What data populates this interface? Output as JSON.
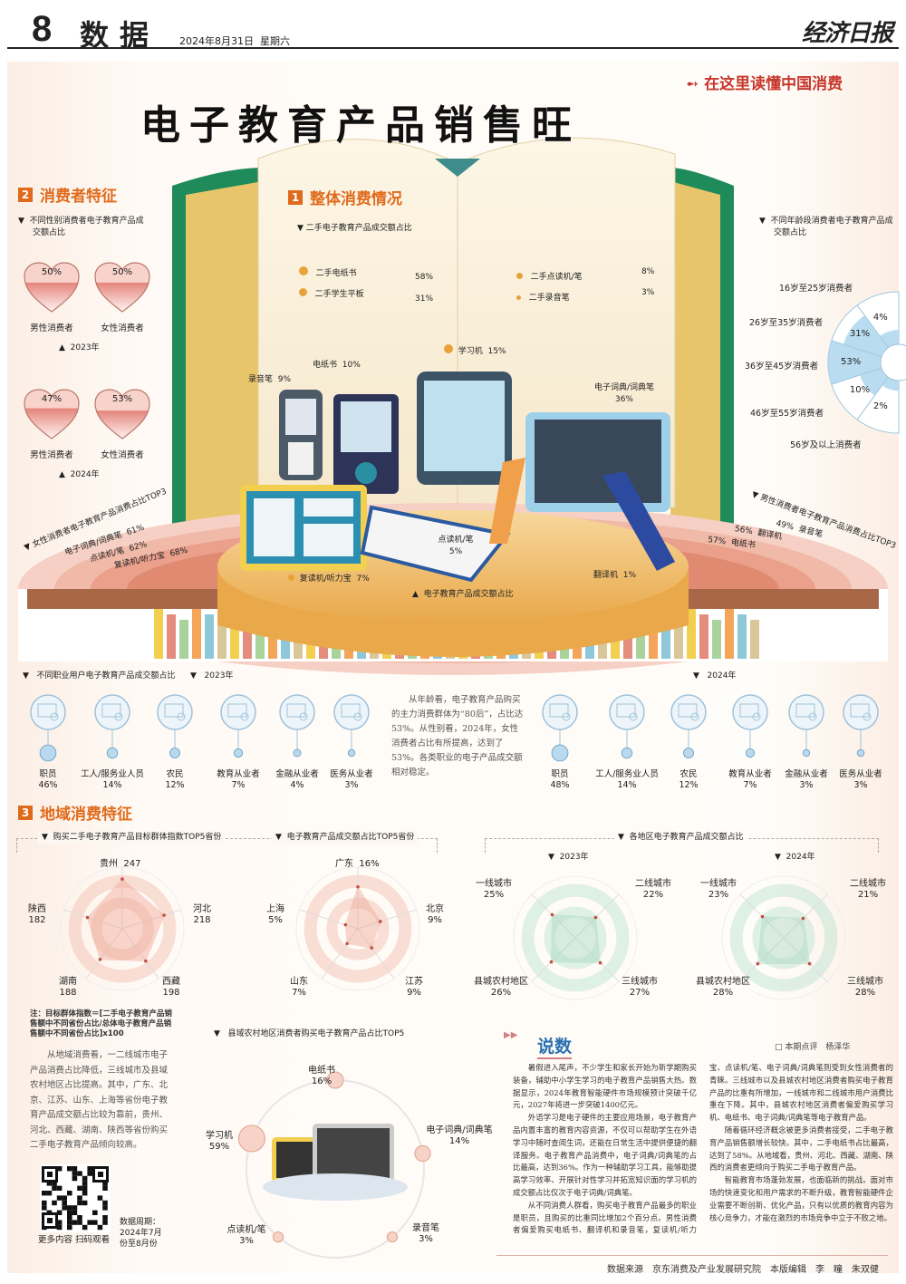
{
  "header": {
    "page_number": "8",
    "section": "数据",
    "date": "2024年8月31日",
    "weekday": "星期六",
    "newspaper_logo": "经济日报"
  },
  "tagline": "在这里读懂中国消费",
  "title": "电子教育产品销售旺",
  "colors": {
    "accent": "#e06a1b",
    "tagline": "#c8372d",
    "heart": "#e8918a",
    "age_fill": "#9fcbe6",
    "radar_province": "#f0a898",
    "radar_region": "#a9d8c2",
    "book_cover": "#1f8a5a"
  },
  "section1": {
    "number": "1",
    "heading": "整体消费情况",
    "secondhand": {
      "title": "二手电子教育产品成交额占比",
      "items": [
        {
          "label": "二手电纸书",
          "value": "58%"
        },
        {
          "label": "二手学生平板",
          "value": "31%"
        },
        {
          "label": "二手点读机/笔",
          "value": "8%"
        },
        {
          "label": "二手录音笔",
          "value": "3%"
        }
      ]
    },
    "products": {
      "title": "电子教育产品成交额占比",
      "items": [
        {
          "label": "录音笔",
          "value": "9%"
        },
        {
          "label": "电纸书",
          "value": "10%"
        },
        {
          "label": "学习机",
          "value": "15%"
        },
        {
          "label": "电子词典/词典笔",
          "value": "36%"
        },
        {
          "label": "点读机/笔",
          "value": "5%"
        },
        {
          "label": "复读机/听力宝",
          "value": "7%"
        },
        {
          "label": "翻译机",
          "value": "1%"
        }
      ]
    }
  },
  "section2": {
    "number": "2",
    "heading": "消费者特征",
    "gender": {
      "title": "不同性别消费者电子教育产品成交额占比",
      "years": [
        {
          "year": "2023年",
          "male_label": "男性消费者",
          "male": "50%",
          "female_label": "女性消费者",
          "female": "50%"
        },
        {
          "year": "2024年",
          "male_label": "男性消费者",
          "male": "47%",
          "female_label": "女性消费者",
          "female": "53%"
        }
      ]
    },
    "age": {
      "title": "不同年龄段消费者电子教育产品成交额占比",
      "items": [
        {
          "label": "16岁至25岁消费者",
          "value": "4%",
          "pct": 4
        },
        {
          "label": "26岁至35岁消费者",
          "value": "31%",
          "pct": 31
        },
        {
          "label": "36岁至45岁消费者",
          "value": "53%",
          "pct": 53
        },
        {
          "label": "46岁至55岁消费者",
          "value": "10%",
          "pct": 10
        },
        {
          "label": "56岁及以上消费者",
          "value": "2%",
          "pct": 2
        }
      ]
    },
    "female_top3": {
      "title": "女性消费者电子教育产品消费占比TOP3",
      "items": [
        {
          "label": "电子词典/词典笔",
          "value": "61%"
        },
        {
          "label": "点读机/笔",
          "value": "62%"
        },
        {
          "label": "复读机/听力宝",
          "value": "68%"
        }
      ]
    },
    "male_top3": {
      "title": "男性消费者电子教育产品消费占比TOP3",
      "items": [
        {
          "label": "录音笔",
          "value": "49%"
        },
        {
          "label": "翻译机",
          "value": "56%"
        },
        {
          "label": "电纸书",
          "value": "57%"
        }
      ]
    },
    "occupation": {
      "title": "不同职业用户电子教育产品成交额占比",
      "years": [
        {
          "year": "2023年",
          "items": [
            {
              "label": "职员",
              "value": "46%",
              "pct": 46
            },
            {
              "label": "工人/服务业人员",
              "value": "14%",
              "pct": 14
            },
            {
              "label": "农民",
              "value": "12%",
              "pct": 12
            },
            {
              "label": "教育从业者",
              "value": "7%",
              "pct": 7
            },
            {
              "label": "金融从业者",
              "value": "4%",
              "pct": 4
            },
            {
              "label": "医务从业者",
              "value": "3%",
              "pct": 3
            }
          ]
        },
        {
          "year": "2024年",
          "items": [
            {
              "label": "职员",
              "value": "48%",
              "pct": 48
            },
            {
              "label": "工人/服务业人员",
              "value": "14%",
              "pct": 14
            },
            {
              "label": "农民",
              "value": "12%",
              "pct": 12
            },
            {
              "label": "教育从业者",
              "value": "7%",
              "pct": 7
            },
            {
              "label": "金融从业者",
              "value": "3%",
              "pct": 3
            },
            {
              "label": "医务从业者",
              "value": "3%",
              "pct": 3
            }
          ]
        }
      ]
    },
    "summary": "从年龄看，电子教育产品购买的主力消费群体为“80后”，占比达53%。从性别看，2024年，女性消费者占比有所提高，达到了53%。各类职业的电子产品成交额相对稳定。"
  },
  "section3": {
    "number": "3",
    "heading": "地域消费特征",
    "index_top5": {
      "title": "购买二手电子教育产品目标群体指数TOP5省份",
      "items": [
        {
          "label": "贵州",
          "value": 247
        },
        {
          "label": "河北",
          "value": 218
        },
        {
          "label": "西藏",
          "value": 198
        },
        {
          "label": "湖南",
          "value": 188
        },
        {
          "label": "陕西",
          "value": 182
        }
      ]
    },
    "share_top5": {
      "title": "电子教育产品成交额占比TOP5省份",
      "items": [
        {
          "label": "广东",
          "value": "16%",
          "pct": 16
        },
        {
          "label": "北京",
          "value": "9%",
          "pct": 9
        },
        {
          "label": "江苏",
          "value": "9%",
          "pct": 9
        },
        {
          "label": "山东",
          "value": "7%",
          "pct": 7
        },
        {
          "label": "上海",
          "value": "5%",
          "pct": 5
        }
      ]
    },
    "regions": {
      "title": "各地区电子教育产品成交额占比",
      "years": [
        {
          "year": "2023年",
          "items": [
            {
              "label": "一线城市",
              "value": "25%",
              "pct": 25
            },
            {
              "label": "二线城市",
              "value": "22%",
              "pct": 22
            },
            {
              "label": "三线城市",
              "value": "27%",
              "pct": 27
            },
            {
              "label": "县城农村地区",
              "value": "26%",
              "pct": 26
            }
          ]
        },
        {
          "year": "2024年",
          "items": [
            {
              "label": "一线城市",
              "value": "23%",
              "pct": 23
            },
            {
              "label": "二线城市",
              "value": "21%",
              "pct": 21
            },
            {
              "label": "三线城市",
              "value": "28%",
              "pct": 28
            },
            {
              "label": "县城农村地区",
              "value": "28%",
              "pct": 28
            }
          ]
        }
      ]
    },
    "note": "注：目标群体指数＝[二手电子教育产品销售额中不同省份占比/总体电子教育产品销售额中不同省份占比]x100",
    "summary": "从地域消费看，一二线城市电子产品消费占比降低，三线城市及县域农村地区占比提高。其中，广东、北京、江苏、山东、上海等省份电子教育产品成交额占比较为靠前，贵州、河北、西藏、湖南、陕西等省份购买二手电子教育产品倾向较高。",
    "rural_top5": {
      "title": "县域农村地区消费者购买电子教育产品占比TOP5",
      "items": [
        {
          "label": "电纸书",
          "value": "16%",
          "pct": 16
        },
        {
          "label": "电子词典/词典笔",
          "value": "14%",
          "pct": 14
        },
        {
          "label": "录音笔",
          "value": "3%",
          "pct": 3
        },
        {
          "label": "点读机/笔",
          "value": "3%",
          "pct": 3
        },
        {
          "label": "学习机",
          "value": "59%",
          "pct": 59
        }
      ]
    },
    "qr_caption": "更多内容 扫码观看",
    "period_label": "数据周期：",
    "period": "2024年7月份至8月份"
  },
  "commentary": {
    "heading": "说数",
    "byline": "□ 本期点评　杨泽华",
    "paragraphs": [
      "暑假进入尾声，不少学生和家长开始为新学期购买装备，辅助中小学生学习的电子教育产品销售大热。数据显示，2024年教育智能硬件市场规模预计突破千亿元，2027年将进一步突破1400亿元。",
      "外语学习是电子硬件的主要应用场景，电子教育产品内置丰富的教育内容资源，不仅可以帮助学生在外语学习中随时查阅生词，还能在日常生活中提供便捷的翻译服务。电子教育产品消费中，电子词典/词典笔的占比最高，达到36%。作为一种辅助学习工具，能够助提高学习效率、开展针对性学习并拓宽知识面的学习机的成交额占比仅次于电子词典/词典笔。",
      "从不同消费人群看，购买电子教育产品最多的职业是职员，且购买的比重同比增加2个百分点。男性消费者偏爱购买电纸书、翻译机和录音笔，复读机/听力宝、点读机/笔、电子词典/词典笔则受到女性消费者的青睐。三线城市以及县城农村地区消费者购买电子教育产品的比重有所增加，一线城市和二线城市用户消费比重在下降。其中，县城农村地区消费者偏爱购买学习机、电纸书、电子词典/词典笔等电子教育产品。",
      "随着循环经济概念被更多消费者接受，二手电子教育产品销售额增长较快。其中，二手电纸书占比最高，达到了58%。从地域看，贵州、河北、西藏、湖南、陕西的消费者更倾向于购买二手电子教育产品。",
      "智能教育市场蓬勃发展，也面临新的挑战。面对市场的快速变化和用户需求的不断升级，教育智能硬件企业需要不断创新、优化产品，只有以优质的教育内容为核心竞争力，才能在激烈的市场竞争中立于不败之地。"
    ]
  },
  "footer": "数据来源　京东消费及产业发展研究院　本版编辑　李　瞳　朱双健"
}
